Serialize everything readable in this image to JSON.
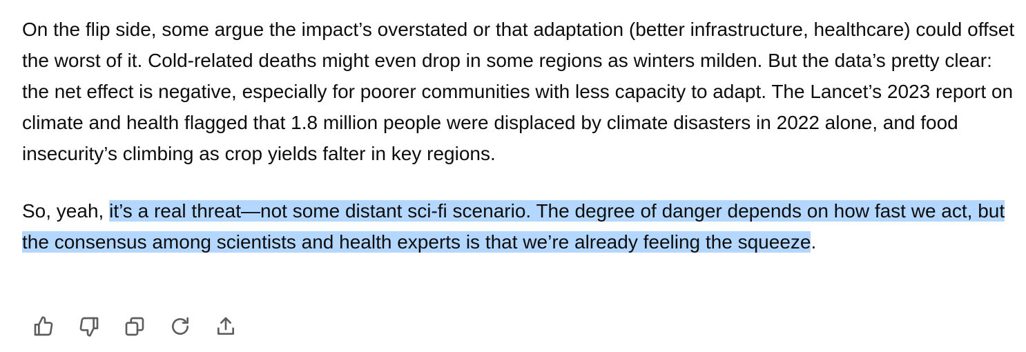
{
  "message": {
    "paragraph_1": "On the flip side, some argue the impact’s overstated or that adaptation (better infrastructure, healthcare) could offset the worst of it. Cold-related deaths might even drop in some regions as winters milden. But the data’s pretty clear: the net effect is negative, especially for poorer communities with less capacity to adapt. The Lancet’s 2023 report on climate and health flagged that 1.8 million people were displaced by climate disasters in 2022 alone, and food insecurity’s climbing as crop yields falter in key regions.",
    "paragraph_2": {
      "before_selection": "So, yeah, ",
      "selection": "it’s a real threat—not some distant sci-fi scenario. The degree of danger depends on how fast we act, but the consensus among scientists and health experts is that we’re already feeling the squeeze",
      "after_selection": "."
    }
  },
  "actions": {
    "icons": [
      "thumbs-up-icon",
      "thumbs-down-icon",
      "copy-icon",
      "regenerate-icon",
      "share-icon"
    ]
  },
  "colors": {
    "text": "#0d0d0d",
    "selection": "#b3d7fe",
    "icon": "#5d5d5d"
  }
}
